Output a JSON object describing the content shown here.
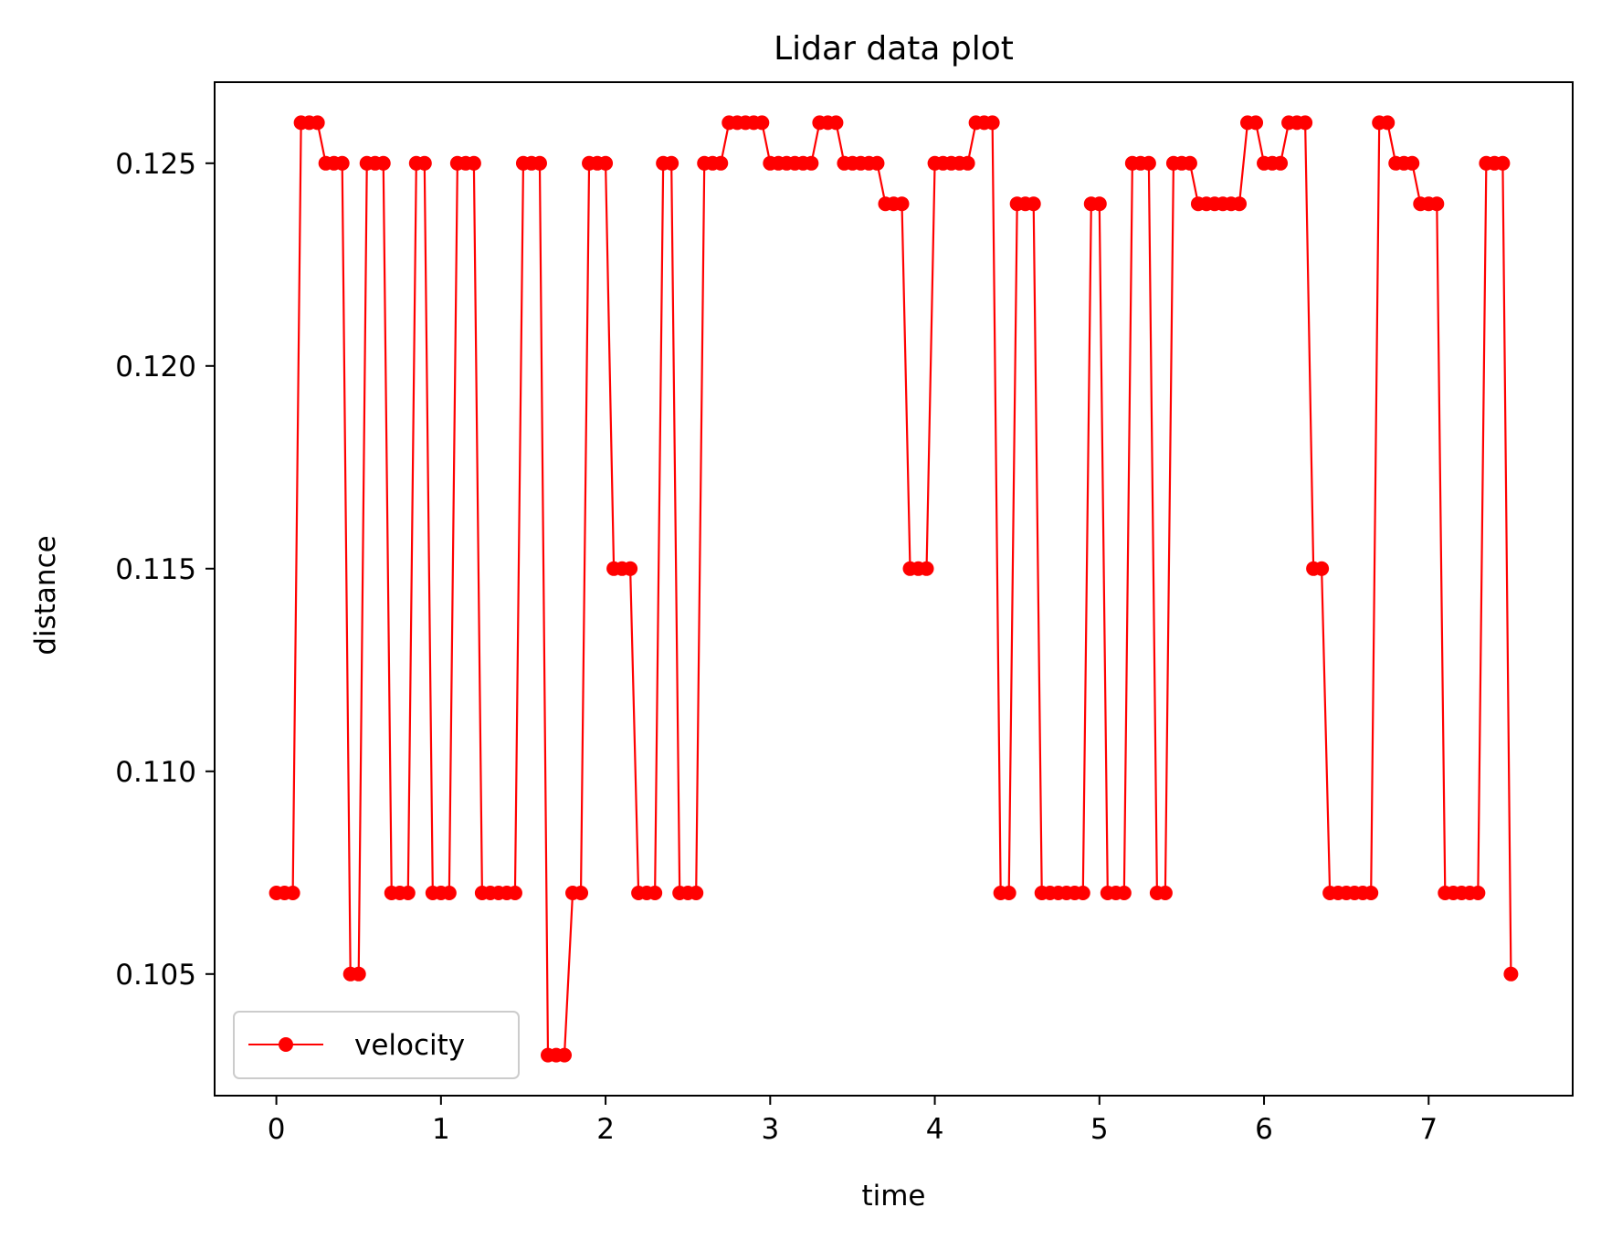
{
  "chart_data": {
    "type": "line",
    "title": "Lidar data plot",
    "xlabel": "time",
    "ylabel": "distance",
    "xlim": [
      -0.375,
      7.875
    ],
    "ylim": [
      0.102,
      0.127
    ],
    "xticks": [
      "0",
      "1",
      "2",
      "3",
      "4",
      "5",
      "6",
      "7"
    ],
    "yticks": [
      "0.105",
      "0.110",
      "0.115",
      "0.120",
      "0.125"
    ],
    "grid": false,
    "legend_position": "lower-left",
    "series": [
      {
        "name": "velocity",
        "color": "#ff0000",
        "marker": "circle",
        "y": [
          0.107,
          0.107,
          0.107,
          0.126,
          0.126,
          0.126,
          0.125,
          0.125,
          0.125,
          0.105,
          0.105,
          0.125,
          0.125,
          0.125,
          0.107,
          0.107,
          0.107,
          0.125,
          0.125,
          0.107,
          0.107,
          0.107,
          0.125,
          0.125,
          0.125,
          0.107,
          0.107,
          0.107,
          0.107,
          0.107,
          0.125,
          0.125,
          0.125,
          0.103,
          0.103,
          0.103,
          0.107,
          0.107,
          0.125,
          0.125,
          0.125,
          0.115,
          0.115,
          0.115,
          0.107,
          0.107,
          0.107,
          0.125,
          0.125,
          0.107,
          0.107,
          0.107,
          0.125,
          0.125,
          0.125,
          0.126,
          0.126,
          0.126,
          0.126,
          0.126,
          0.125,
          0.125,
          0.125,
          0.125,
          0.125,
          0.125,
          0.126,
          0.126,
          0.126,
          0.125,
          0.125,
          0.125,
          0.125,
          0.125,
          0.124,
          0.124,
          0.124,
          0.115,
          0.115,
          0.115,
          0.125,
          0.125,
          0.125,
          0.125,
          0.125,
          0.126,
          0.126,
          0.126,
          0.107,
          0.107,
          0.124,
          0.124,
          0.124,
          0.107,
          0.107,
          0.107,
          0.107,
          0.107,
          0.107,
          0.124,
          0.124,
          0.107,
          0.107,
          0.107,
          0.125,
          0.125,
          0.125,
          0.107,
          0.107,
          0.125,
          0.125,
          0.125,
          0.124,
          0.124,
          0.124,
          0.124,
          0.124,
          0.124,
          0.126,
          0.126,
          0.125,
          0.125,
          0.125,
          0.126,
          0.126,
          0.126,
          0.115,
          0.115,
          0.107,
          0.107,
          0.107,
          0.107,
          0.107,
          0.107,
          0.126,
          0.126,
          0.125,
          0.125,
          0.125,
          0.124,
          0.124,
          0.124,
          0.107,
          0.107,
          0.107,
          0.107,
          0.107,
          0.125,
          0.125,
          0.125,
          0.105
        ],
        "x_start": 0,
        "x_step": 0.05
      }
    ]
  }
}
